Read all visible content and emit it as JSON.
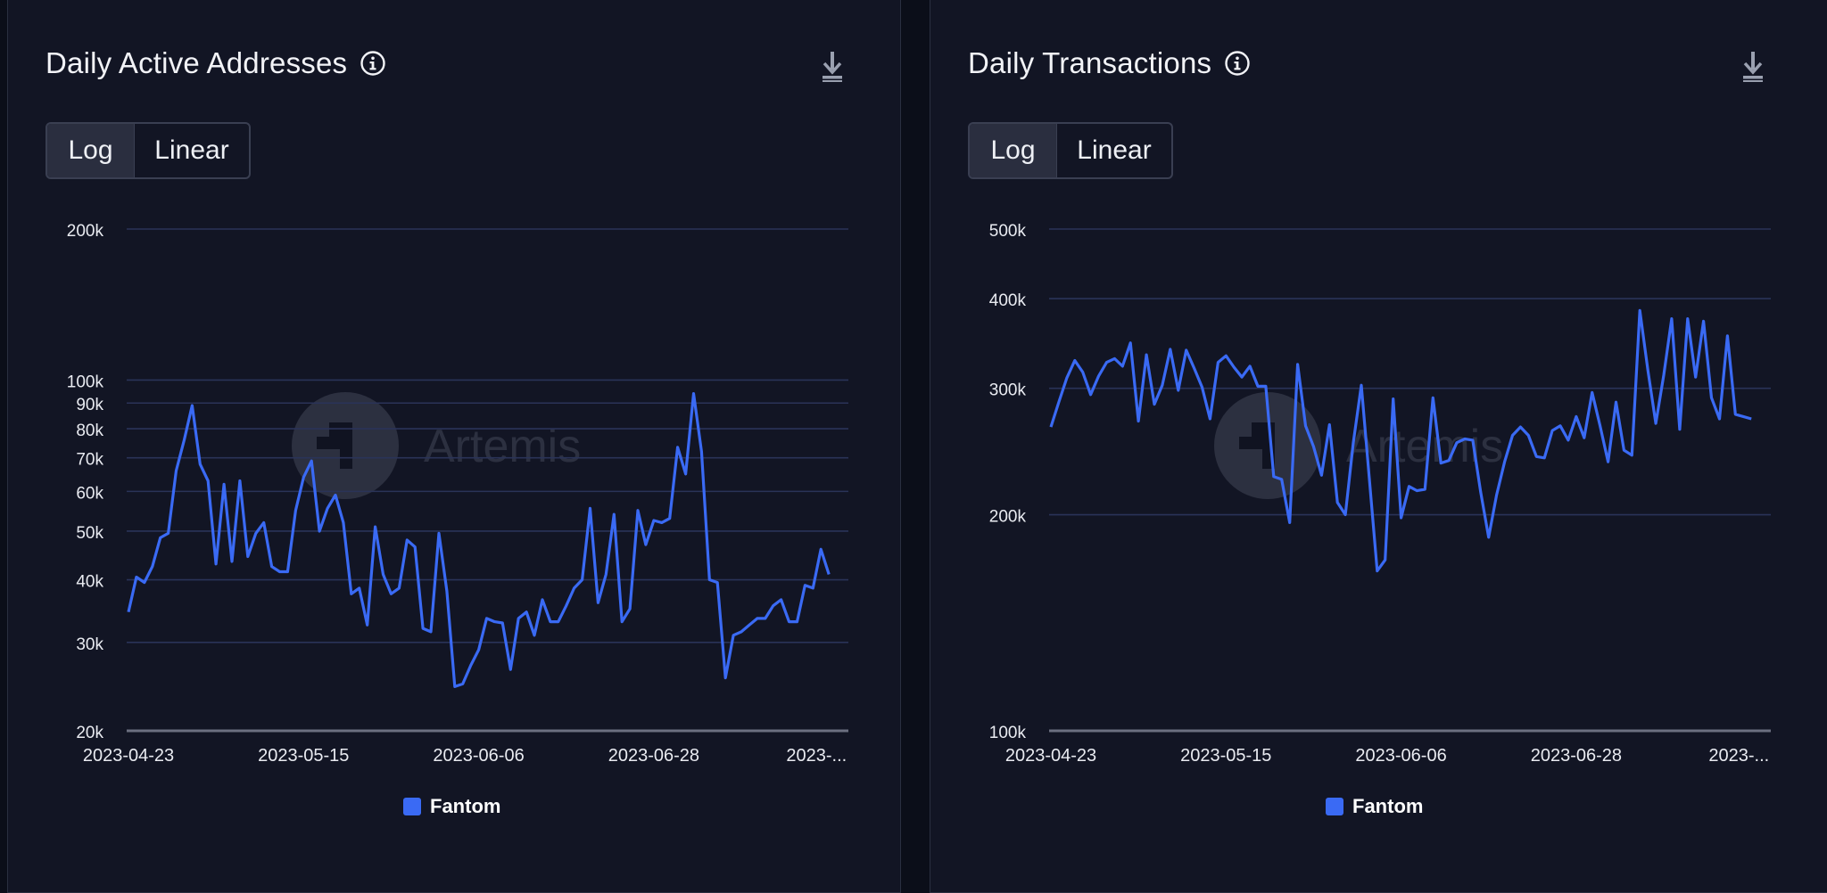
{
  "colors": {
    "series": "#3a6af4",
    "grid": "#2a3358",
    "axis_baseline": "#6b6f80",
    "tick_text": "#e9ebf1"
  },
  "icons": {
    "info": "info-circle-icon",
    "download": "download-icon"
  },
  "watermark": {
    "text": "Artemis"
  },
  "chart_data": [
    {
      "type": "line",
      "title": "Daily Active Addresses",
      "scale": "log",
      "scale_options": [
        "Log",
        "Linear"
      ],
      "selected_scale": "Log",
      "grid": true,
      "legend": "bottom-center",
      "xlabel": "",
      "ylabel": "",
      "x_start": "2023-04-23",
      "x_tick_labels": [
        "2023-04-23",
        "2023-05-15",
        "2023-06-06",
        "2023-06-28",
        "2023-..."
      ],
      "x_tick_days": [
        0,
        22,
        44,
        66,
        86
      ],
      "y_ticks": [
        20000,
        30000,
        40000,
        50000,
        60000,
        70000,
        80000,
        90000,
        100000,
        200000
      ],
      "y_tick_labels": [
        "20k",
        "30k",
        "40k",
        "50k",
        "60k",
        "70k",
        "80k",
        "90k",
        "100k",
        "200k"
      ],
      "ylim": [
        20000,
        200000
      ],
      "xlim": [
        0,
        90
      ],
      "series": [
        {
          "name": "Fantom",
          "color": "#3a6af4",
          "values": [
            34500,
            40500,
            39500,
            42500,
            48500,
            49500,
            66000,
            76000,
            89000,
            68000,
            63000,
            43000,
            62000,
            43500,
            63000,
            44500,
            49500,
            52000,
            42500,
            41500,
            41500,
            55000,
            64000,
            69000,
            50000,
            55500,
            59000,
            52000,
            37500,
            38500,
            32500,
            51000,
            41000,
            37500,
            38500,
            48000,
            46500,
            32000,
            31500,
            49500,
            38000,
            24500,
            24800,
            27000,
            29000,
            33500,
            33000,
            32800,
            26500,
            33500,
            34500,
            31000,
            36500,
            33000,
            33000,
            35500,
            38500,
            40000,
            55500,
            36000,
            41000,
            54000,
            33000,
            35000,
            55000,
            47000,
            52500,
            52000,
            53000,
            73500,
            65000,
            94000,
            72000,
            40000,
            39500,
            25500,
            31000,
            31500,
            32500,
            33500,
            33500,
            35500,
            36500,
            33000,
            33000,
            39000,
            38500,
            46000,
            41000
          ]
        }
      ]
    },
    {
      "type": "line",
      "title": "Daily Transactions",
      "scale": "log",
      "scale_options": [
        "Log",
        "Linear"
      ],
      "selected_scale": "Log",
      "grid": true,
      "legend": "bottom-center",
      "xlabel": "",
      "ylabel": "",
      "x_start": "2023-04-23",
      "x_tick_labels": [
        "2023-04-23",
        "2023-05-15",
        "2023-06-06",
        "2023-06-28",
        "2023-..."
      ],
      "x_tick_days": [
        0,
        22,
        44,
        66,
        86
      ],
      "y_ticks": [
        100000,
        200000,
        300000,
        400000,
        500000
      ],
      "y_tick_labels": [
        "100k",
        "200k",
        "300k",
        "400k",
        "500k"
      ],
      "ylim": [
        100000,
        500000
      ],
      "xlim": [
        0,
        90
      ],
      "series": [
        {
          "name": "Fantom",
          "color": "#3a6af4",
          "values": [
            265000,
            287000,
            310000,
            328000,
            316000,
            294000,
            312000,
            326000,
            330000,
            322000,
            347000,
            270000,
            334000,
            285000,
            303000,
            340000,
            298000,
            339000,
            320000,
            301000,
            272000,
            326000,
            333000,
            321000,
            311000,
            322000,
            302000,
            302000,
            226000,
            224000,
            195000,
            324000,
            266000,
            249000,
            227000,
            267000,
            208000,
            200000,
            252000,
            303000,
            225000,
            167000,
            173000,
            290000,
            198000,
            219000,
            216000,
            217000,
            291000,
            236000,
            238000,
            252000,
            255000,
            254000,
            215000,
            186000,
            213000,
            237000,
            258000,
            265000,
            258000,
            241000,
            240000,
            262000,
            266000,
            254000,
            274000,
            256000,
            296000,
            266000,
            237000,
            287000,
            246000,
            242000,
            385000,
            318000,
            268000,
            313000,
            375000,
            263000,
            375000,
            311000,
            372000,
            291000,
            272000,
            355000,
            276000,
            274000,
            272000
          ]
        }
      ]
    }
  ]
}
